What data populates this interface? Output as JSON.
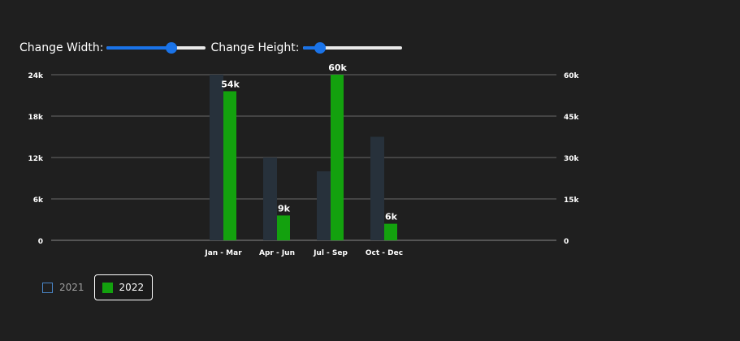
{
  "controls": {
    "width_label": "Change Width:",
    "height_label": "Change Height:",
    "width_value": 0.65,
    "height_value": 0.18,
    "accent": "#1a73e8"
  },
  "chart_data": {
    "type": "bar",
    "categories": [
      "Jan - Mar",
      "Apr - Jun",
      "Jul - Sep",
      "Oct - Dec"
    ],
    "series": [
      {
        "name": "2021",
        "axis": "left",
        "values": [
          24000,
          12000,
          10000,
          15000
        ],
        "color": "#27313b",
        "visible": false
      },
      {
        "name": "2022",
        "axis": "right",
        "values": [
          54000,
          9000,
          60000,
          6000
        ],
        "color": "#13a10e",
        "visible": true,
        "labels": [
          "54k",
          "9k",
          "60k",
          "6k"
        ]
      }
    ],
    "y_left": {
      "min": 0,
      "max": 24000,
      "ticks": [
        "0",
        "6k",
        "12k",
        "18k",
        "24k"
      ]
    },
    "y_right": {
      "min": 0,
      "max": 60000,
      "ticks": [
        "0",
        "15k",
        "30k",
        "45k",
        "60k"
      ]
    },
    "grid": true,
    "legend": {
      "position": "bottom-left",
      "items": [
        "2021",
        "2022"
      ]
    }
  }
}
